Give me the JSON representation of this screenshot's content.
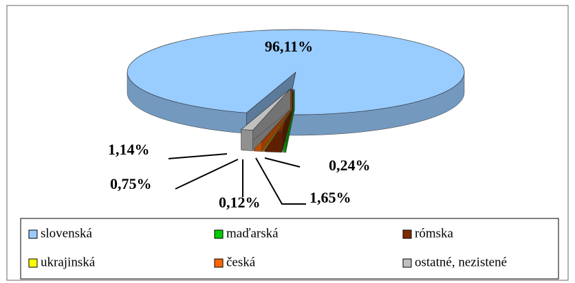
{
  "chart_data": {
    "type": "pie",
    "categories": [
      "slovenská",
      "maďarská",
      "rómska",
      "ukrajinská",
      "česká",
      "ostatné, nezistené"
    ],
    "values": [
      96.11,
      0.24,
      1.65,
      0.12,
      0.75,
      1.14
    ],
    "value_labels": [
      "96,11%",
      "0,24%",
      "1,65%",
      "0,12%",
      "0,75%",
      "1,14%"
    ],
    "colors": [
      "#99ccff",
      "#00cc00",
      "#7f2a00",
      "#ffff00",
      "#ff6600",
      "#c0c0c0"
    ],
    "legend": "bottom"
  }
}
